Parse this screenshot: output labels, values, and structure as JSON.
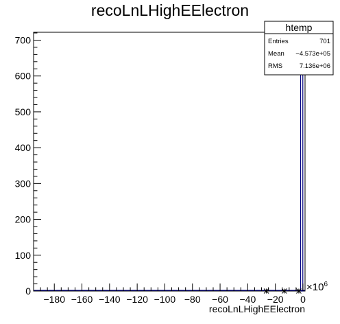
{
  "chart_data": {
    "type": "bar",
    "title": "recoLnLHighEElectron",
    "xlabel": "recoLnLHighEElectron",
    "ylabel": "",
    "x_multiplier": "×10",
    "x_multiplier_exp": "6",
    "xlim": [
      -195,
      1.5
    ],
    "ylim": [
      0,
      722
    ],
    "x_ticks": [
      -180,
      -160,
      -140,
      -120,
      -100,
      -80,
      -60,
      -40,
      -20,
      0
    ],
    "y_ticks": [
      0,
      100,
      200,
      300,
      400,
      500,
      600,
      700
    ],
    "bins": [
      {
        "x": -26.5,
        "y": 0
      },
      {
        "x": -13.5,
        "y": 0
      },
      {
        "x": -3.0,
        "y": 0
      },
      {
        "x": -0.9,
        "y": 701
      }
    ],
    "bar_color": "#000080",
    "grid": false,
    "legend": "none"
  },
  "stats": {
    "name": "htemp",
    "rows": [
      {
        "label": "Entries",
        "value": "701"
      },
      {
        "label": "Mean",
        "value": "−4.573e+05"
      },
      {
        "label": "RMS",
        "value": "7.136e+06"
      }
    ]
  }
}
